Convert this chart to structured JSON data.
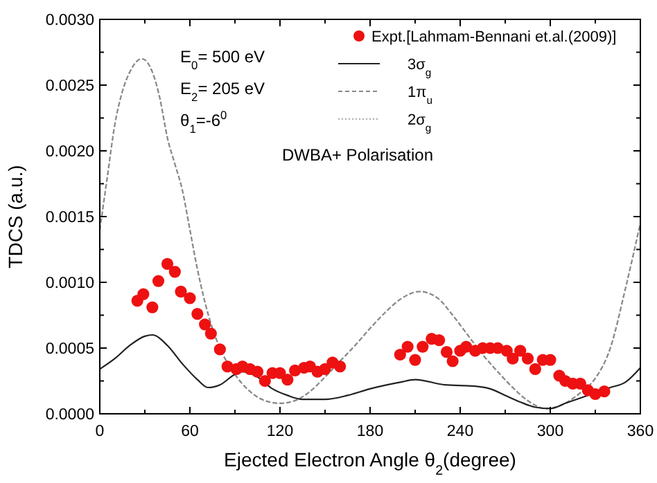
{
  "chart_data": {
    "type": "line",
    "xlabel": "Ejected Electron Angle θ$_{2}$(degree)",
    "ylabel": "TDCS (a.u.)",
    "xlim": [
      0,
      360
    ],
    "ylim": [
      0,
      0.003
    ],
    "xticks": [
      0,
      {
        "value": 30,
        "label": null
      },
      60,
      {
        "value": 90,
        "label": null
      },
      120,
      {
        "value": 150,
        "label": null
      },
      180,
      {
        "value": 210,
        "label": null
      },
      240,
      {
        "value": 270,
        "label": null
      },
      300,
      {
        "value": 330,
        "label": null
      },
      360
    ],
    "yticks": [
      {
        "value": 0,
        "label": "0.0000"
      },
      {
        "value": 0.00025,
        "label": null
      },
      {
        "value": 0.0005,
        "label": "0.0005"
      },
      {
        "value": 0.00075,
        "label": null
      },
      {
        "value": 0.001,
        "label": "0.0010"
      },
      {
        "value": 0.00125,
        "label": null
      },
      {
        "value": 0.0015,
        "label": "0.0015"
      },
      {
        "value": 0.00175,
        "label": null
      },
      {
        "value": 0.002,
        "label": "0.0020"
      },
      {
        "value": 0.00225,
        "label": null
      },
      {
        "value": 0.0025,
        "label": "0.0025"
      },
      {
        "value": 0.00275,
        "label": null
      },
      {
        "value": 0.003,
        "label": "0.0030"
      }
    ],
    "grid": false,
    "legend": "top right",
    "annotations": [
      "E$_{0}$= 500 eV",
      "E$_{2}$= 205 eV",
      "θ$_{1}$=-6$^{0}$",
      "DWBA+ Polarisation"
    ],
    "series": [
      {
        "name": "Expt.[Lahmam-Bennani et.al.(2009)]",
        "type": "scatter",
        "marker": "circle",
        "color": "#ee1111",
        "x": [
          25,
          29,
          35,
          39,
          45,
          50,
          54,
          60,
          65,
          70,
          74,
          80,
          85,
          91,
          95,
          100,
          105,
          110,
          115,
          120,
          125,
          130,
          136,
          140,
          145,
          150,
          155,
          160,
          200,
          205,
          210,
          215,
          221,
          226,
          231,
          235,
          240,
          244,
          250,
          255,
          260,
          265,
          271,
          275,
          280,
          285,
          290,
          295,
          300,
          306,
          310,
          315,
          320,
          325,
          330,
          336
        ],
        "values": [
          0.00086,
          0.00091,
          0.00081,
          0.00101,
          0.00114,
          0.00108,
          0.00093,
          0.00088,
          0.00076,
          0.00068,
          0.00061,
          0.00049,
          0.00036,
          0.00034,
          0.00036,
          0.00034,
          0.00032,
          0.00025,
          0.00031,
          0.00031,
          0.00026,
          0.00033,
          0.00035,
          0.00036,
          0.00032,
          0.00034,
          0.00039,
          0.00036,
          0.00045,
          0.00051,
          0.00041,
          0.00051,
          0.00057,
          0.00056,
          0.00047,
          0.0004,
          0.00048,
          0.00051,
          0.00048,
          0.0005,
          0.0005,
          0.0005,
          0.00048,
          0.00042,
          0.00048,
          0.00042,
          0.00034,
          0.00041,
          0.00041,
          0.00029,
          0.00025,
          0.00023,
          0.00023,
          0.00018,
          0.00015,
          0.00017
        ]
      },
      {
        "name": "3σ$_{g}$",
        "line_style": "solid",
        "color": "#222222",
        "x": [
          0,
          10,
          20,
          30,
          35,
          45,
          55,
          65,
          72,
          80,
          90,
          95,
          105,
          115,
          125,
          135,
          150,
          165,
          180,
          200,
          210,
          230,
          250,
          260,
          270,
          280,
          290,
          300,
          310,
          320,
          330,
          340,
          350,
          360
        ],
        "values": [
          0.00034,
          0.00042,
          0.00052,
          0.00059,
          0.0006,
          0.00052,
          0.00038,
          0.00026,
          0.0002,
          0.00022,
          0.0003,
          0.00032,
          0.00028,
          0.00019,
          0.00014,
          0.00011,
          0.00011,
          0.00014,
          0.00019,
          0.00024,
          0.00026,
          0.00022,
          0.00021,
          0.00019,
          0.00014,
          9e-05,
          5e-05,
          4e-05,
          8e-05,
          0.00012,
          0.00016,
          0.0002,
          0.00024,
          0.00035
        ]
      },
      {
        "name": "1π$_{u}$",
        "line_style": "dashed",
        "color": "#888888",
        "x": [
          0,
          5,
          10,
          15,
          20,
          28,
          35,
          40,
          45,
          50,
          55,
          60,
          65,
          70,
          75,
          80,
          90,
          100,
          110,
          120,
          130,
          140,
          150,
          160,
          170,
          180,
          190,
          200,
          213,
          225,
          235,
          245,
          255,
          265,
          275,
          285,
          297,
          310,
          320,
          330,
          340,
          350,
          360
        ],
        "values": [
          0.0014,
          0.0018,
          0.0022,
          0.00245,
          0.0026,
          0.0027,
          0.0026,
          0.0024,
          0.0021,
          0.0019,
          0.0017,
          0.0014,
          0.0011,
          0.00085,
          0.00065,
          0.0005,
          0.0003,
          0.00017,
          0.0001,
          8e-05,
          0.0001,
          0.00017,
          0.00028,
          0.0004,
          0.00052,
          0.00065,
          0.00077,
          0.00087,
          0.00093,
          0.00088,
          0.00075,
          0.0006,
          0.00045,
          0.00032,
          0.0002,
          0.0001,
          4e-05,
          8e-05,
          0.00016,
          0.00027,
          0.0005,
          0.00095,
          0.00145
        ]
      },
      {
        "name": "2σ$_{g}$",
        "line_style": "dotted",
        "color": "#aaaaaa",
        "x": [
          0,
          5,
          10,
          15,
          20,
          28,
          35,
          40,
          45,
          50,
          55,
          60,
          65,
          70,
          75,
          80,
          90,
          100,
          110,
          120,
          130,
          140,
          150,
          160,
          170,
          180,
          190,
          200,
          213,
          225,
          235,
          245,
          255,
          265,
          275,
          285,
          297,
          310,
          320,
          330,
          340,
          350,
          360
        ],
        "values": [
          0.0014,
          0.0018,
          0.0022,
          0.00245,
          0.0026,
          0.0027,
          0.0026,
          0.0024,
          0.0021,
          0.0019,
          0.0017,
          0.0014,
          0.0011,
          0.00085,
          0.00065,
          0.0005,
          0.0003,
          0.00017,
          0.0001,
          8e-05,
          0.0001,
          0.00017,
          0.00028,
          0.0004,
          0.00052,
          0.00065,
          0.00077,
          0.00087,
          0.00093,
          0.00088,
          0.00075,
          0.0006,
          0.00045,
          0.00032,
          0.0002,
          0.0001,
          4e-05,
          8e-05,
          0.00016,
          0.00027,
          0.0005,
          0.00095,
          0.00145
        ]
      }
    ]
  }
}
